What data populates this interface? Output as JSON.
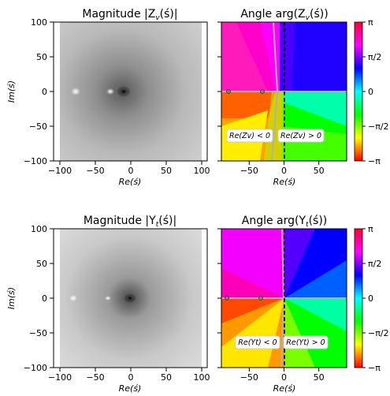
{
  "figure": {
    "row1": {
      "left_title": "Magnitude |Z",
      "left_title_sub": "v",
      "left_title_end": "(ś)|",
      "right_title": "Angle arg(Z",
      "right_title_sub": "v",
      "right_title_end": "(ś))",
      "ann_left": "Re(Zv) < 0",
      "ann_right": "Re(Zv) > 0"
    },
    "row2": {
      "left_title": "Magnitude |Y",
      "left_title_sub": "t",
      "left_title_end": "(ś)|",
      "right_title": "Angle arg(Y",
      "right_title_sub": "t",
      "right_title_end": "(ś))",
      "ann_left": "Re(Yt) < 0",
      "ann_right": "Re(Yt) > 0"
    },
    "xlabel": "Re(ś)",
    "ylabel": "Im(ś)",
    "colorbar_ticks": [
      "π",
      "π/2",
      "0",
      "−π/2",
      "−π"
    ],
    "axis_ticks_x_left": [
      "−100",
      "−50",
      "0",
      "50",
      "100"
    ],
    "axis_ticks_x_right": [
      "−50",
      "0",
      "50"
    ],
    "axis_ticks_y": [
      "100",
      "50",
      "0",
      "−50",
      "−100"
    ]
  },
  "chart_data": [
    {
      "type": "heatmap",
      "title": "Magnitude |Zv(ś)|",
      "xlabel": "Re(ś)",
      "ylabel": "Im(ś)",
      "xlim": [
        -100,
        100
      ],
      "ylim": [
        -100,
        100
      ],
      "colormap": "gray",
      "singular_points": [
        {
          "x": -80,
          "y": 0
        },
        {
          "x": -30,
          "y": 0
        },
        {
          "x": -7,
          "y": 0
        }
      ]
    },
    {
      "type": "heatmap",
      "title": "Angle arg(Zv(ś))",
      "xlabel": "Re(ś)",
      "xlim": [
        -90,
        90
      ],
      "ylim": [
        -100,
        100
      ],
      "colormap": "hsv",
      "colorbar_range": [
        -3.14159,
        3.14159
      ],
      "colorbar_ticks": [
        "π",
        "π/2",
        "0",
        "−π/2",
        "−π"
      ],
      "dashed_line_x": 0,
      "zero_real_part_curve": [
        {
          "x": -15,
          "y": 100
        },
        {
          "x": -10,
          "y": 5
        },
        {
          "x": -18,
          "y": -100
        }
      ],
      "markers": [
        {
          "x": -80,
          "y": 0
        },
        {
          "x": -30,
          "y": 0
        }
      ],
      "annotations": [
        "Re(Zv) < 0",
        "Re(Zv) > 0"
      ]
    },
    {
      "type": "heatmap",
      "title": "Magnitude |Yt(ś)|",
      "xlabel": "Re(ś)",
      "ylabel": "Im(ś)",
      "xlim": [
        -100,
        100
      ],
      "ylim": [
        -100,
        100
      ],
      "colormap": "gray",
      "singular_points": [
        {
          "x": -82,
          "y": 0
        },
        {
          "x": -33,
          "y": 0
        },
        {
          "x": -3,
          "y": 0
        }
      ]
    },
    {
      "type": "heatmap",
      "title": "Angle arg(Yt(ś))",
      "xlabel": "Re(ś)",
      "xlim": [
        -90,
        90
      ],
      "ylim": [
        -100,
        100
      ],
      "colormap": "hsv",
      "colorbar_range": [
        -3.14159,
        3.14159
      ],
      "colorbar_ticks": [
        "π",
        "π/2",
        "0",
        "−π/2",
        "−π"
      ],
      "dashed_line_x": 0,
      "zero_real_part_curve": [
        {
          "x": -2,
          "y": 100
        },
        {
          "x": -1,
          "y": 0
        },
        {
          "x": -3,
          "y": -100
        }
      ],
      "markers": [
        {
          "x": -82,
          "y": 0
        },
        {
          "x": -33,
          "y": 0
        }
      ],
      "annotations": [
        "Re(Yt) < 0",
        "Re(Yt) > 0"
      ]
    }
  ]
}
